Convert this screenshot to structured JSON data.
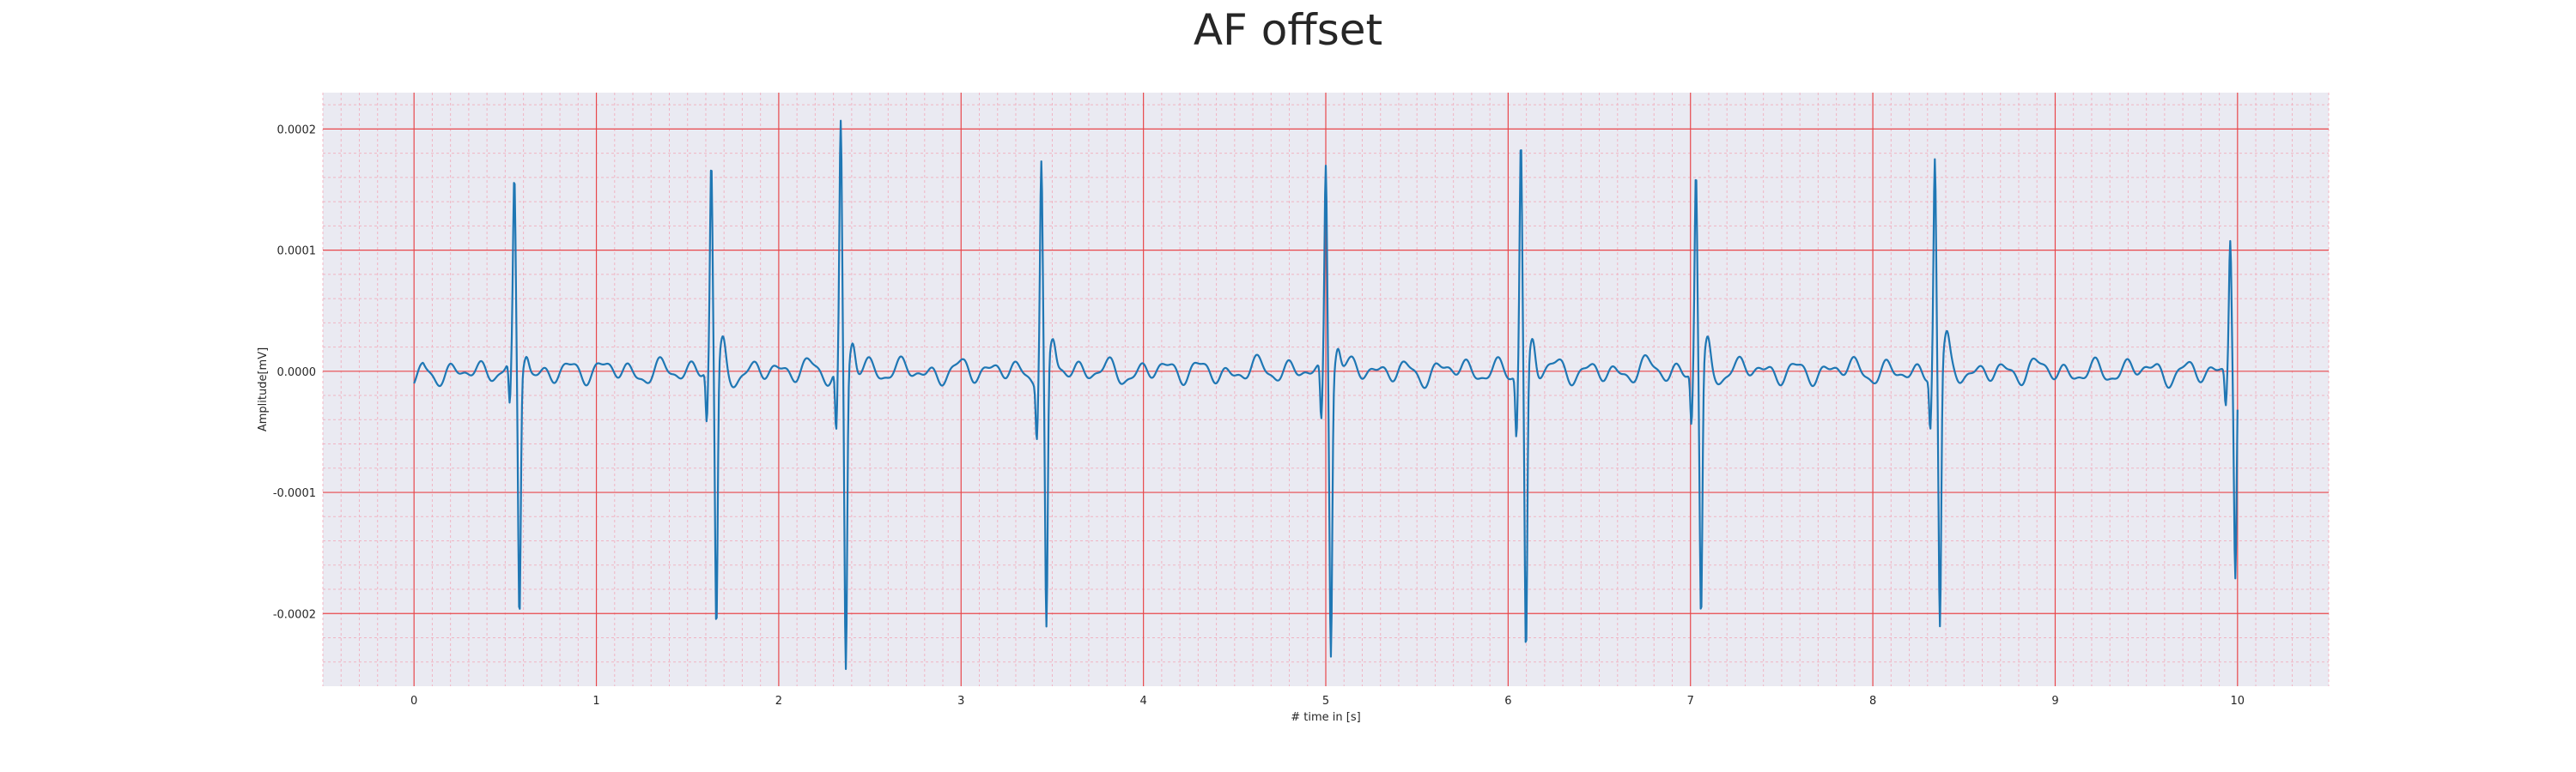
{
  "chart_data": {
    "type": "line",
    "title": "AF offset",
    "xlabel": "# time in [s]",
    "ylabel": "Amplitude[mV]",
    "xlim": [
      -0.5,
      10.5
    ],
    "ylim": [
      -0.00026,
      0.00023
    ],
    "x_ticks": [
      0,
      1,
      2,
      3,
      4,
      5,
      6,
      7,
      8,
      9,
      10
    ],
    "x_tick_labels": [
      "0",
      "1",
      "2",
      "3",
      "4",
      "5",
      "6",
      "7",
      "8",
      "9",
      "10"
    ],
    "y_ticks": [
      -0.0002,
      -0.0001,
      0.0,
      0.0001,
      0.0002
    ],
    "y_tick_labels": [
      "-0.0002",
      "-0.0001",
      "0.0000",
      "0.0001",
      "0.0002"
    ],
    "grid": true,
    "minor_grid": true,
    "colors": {
      "line": "#1f77b4",
      "background": "#eaeaf2",
      "major_grid": "#e8474b",
      "minor_grid": "#f2a7b8"
    },
    "sampling": {
      "fs": 250,
      "duration": 10
    },
    "beats": [
      {
        "t": 0.55,
        "peak": 0.000148,
        "trough": -0.000205
      },
      {
        "t": 1.63,
        "peak": 0.00017,
        "trough": -0.000218
      },
      {
        "t": 2.34,
        "peak": 0.000205,
        "trough": -0.000244
      },
      {
        "t": 3.44,
        "peak": 0.000178,
        "trough": -0.00022
      },
      {
        "t": 5.0,
        "peak": 0.000176,
        "trough": -0.000224
      },
      {
        "t": 6.07,
        "peak": 0.000196,
        "trough": -0.000234
      },
      {
        "t": 7.03,
        "peak": 0.000167,
        "trough": -0.000205
      },
      {
        "t": 8.34,
        "peak": 0.000174,
        "trough": -0.000216
      },
      {
        "t": 9.96,
        "peak": 0.000113,
        "trough": -0.000172
      }
    ],
    "baseline": {
      "start": -1e-05,
      "noise_amplitude": 1.2e-05
    }
  }
}
